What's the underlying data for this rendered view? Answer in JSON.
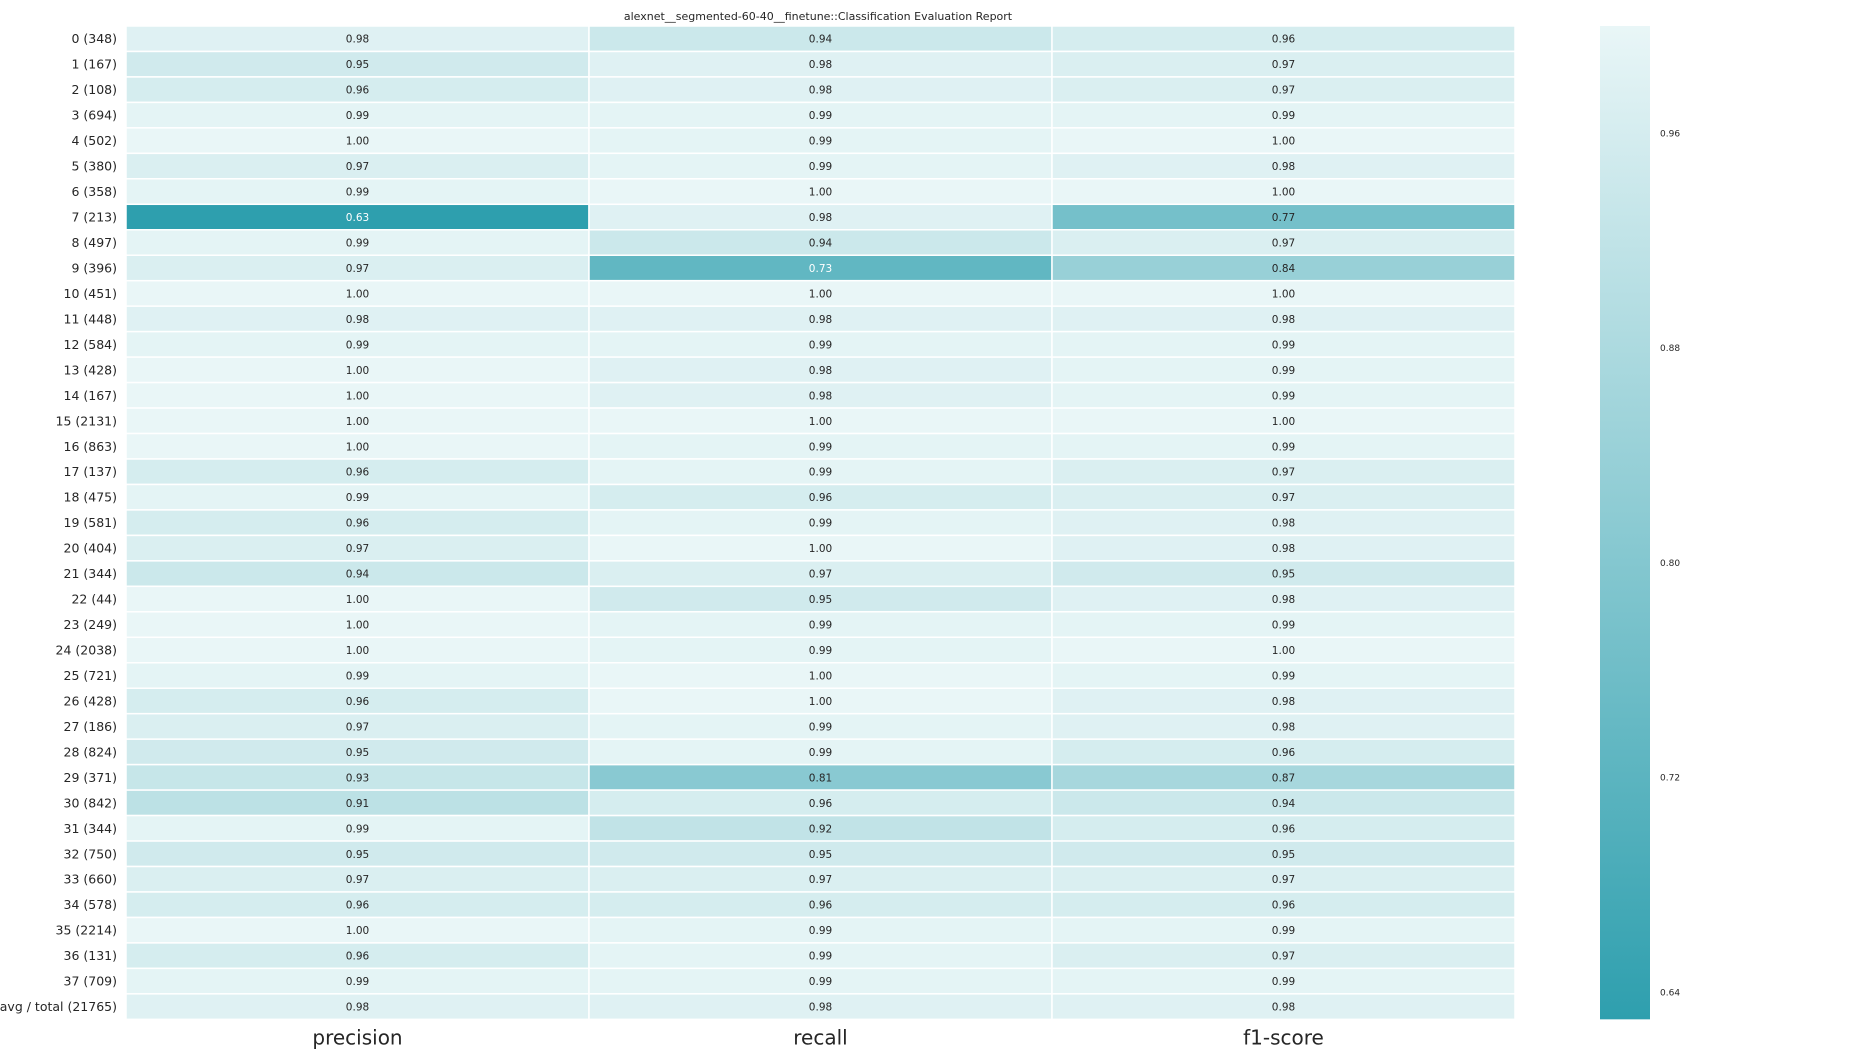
{
  "chart_data": {
    "type": "heatmap",
    "title": "alexnet__segmented-60-40__finetune::Classification Evaluation Report",
    "columns": [
      "precision",
      "recall",
      "f1-score"
    ],
    "rows": [
      {
        "label": "0 (348)",
        "values": [
          0.98,
          0.94,
          0.96
        ]
      },
      {
        "label": "1 (167)",
        "values": [
          0.95,
          0.98,
          0.97
        ]
      },
      {
        "label": "2 (108)",
        "values": [
          0.96,
          0.98,
          0.97
        ]
      },
      {
        "label": "3 (694)",
        "values": [
          0.99,
          0.99,
          0.99
        ]
      },
      {
        "label": "4 (502)",
        "values": [
          1.0,
          0.99,
          1.0
        ]
      },
      {
        "label": "5 (380)",
        "values": [
          0.97,
          0.99,
          0.98
        ]
      },
      {
        "label": "6 (358)",
        "values": [
          0.99,
          1.0,
          1.0
        ]
      },
      {
        "label": "7 (213)",
        "values": [
          0.63,
          0.98,
          0.77
        ]
      },
      {
        "label": "8 (497)",
        "values": [
          0.99,
          0.94,
          0.97
        ]
      },
      {
        "label": "9 (396)",
        "values": [
          0.97,
          0.73,
          0.84
        ]
      },
      {
        "label": "10 (451)",
        "values": [
          1.0,
          1.0,
          1.0
        ]
      },
      {
        "label": "11 (448)",
        "values": [
          0.98,
          0.98,
          0.98
        ]
      },
      {
        "label": "12 (584)",
        "values": [
          0.99,
          0.99,
          0.99
        ]
      },
      {
        "label": "13 (428)",
        "values": [
          1.0,
          0.98,
          0.99
        ]
      },
      {
        "label": "14 (167)",
        "values": [
          1.0,
          0.98,
          0.99
        ]
      },
      {
        "label": "15 (2131)",
        "values": [
          1.0,
          1.0,
          1.0
        ]
      },
      {
        "label": "16 (863)",
        "values": [
          1.0,
          0.99,
          0.99
        ]
      },
      {
        "label": "17 (137)",
        "values": [
          0.96,
          0.99,
          0.97
        ]
      },
      {
        "label": "18 (475)",
        "values": [
          0.99,
          0.96,
          0.97
        ]
      },
      {
        "label": "19 (581)",
        "values": [
          0.96,
          0.99,
          0.98
        ]
      },
      {
        "label": "20 (404)",
        "values": [
          0.97,
          1.0,
          0.98
        ]
      },
      {
        "label": "21 (344)",
        "values": [
          0.94,
          0.97,
          0.95
        ]
      },
      {
        "label": "22 (44)",
        "values": [
          1.0,
          0.95,
          0.98
        ]
      },
      {
        "label": "23 (249)",
        "values": [
          1.0,
          0.99,
          0.99
        ]
      },
      {
        "label": "24 (2038)",
        "values": [
          1.0,
          0.99,
          1.0
        ]
      },
      {
        "label": "25 (721)",
        "values": [
          0.99,
          1.0,
          0.99
        ]
      },
      {
        "label": "26 (428)",
        "values": [
          0.96,
          1.0,
          0.98
        ]
      },
      {
        "label": "27 (186)",
        "values": [
          0.97,
          0.99,
          0.98
        ]
      },
      {
        "label": "28 (824)",
        "values": [
          0.95,
          0.99,
          0.96
        ]
      },
      {
        "label": "29 (371)",
        "values": [
          0.93,
          0.81,
          0.87
        ]
      },
      {
        "label": "30 (842)",
        "values": [
          0.91,
          0.96,
          0.94
        ]
      },
      {
        "label": "31 (344)",
        "values": [
          0.99,
          0.92,
          0.96
        ]
      },
      {
        "label": "32 (750)",
        "values": [
          0.95,
          0.95,
          0.95
        ]
      },
      {
        "label": "33 (660)",
        "values": [
          0.97,
          0.97,
          0.97
        ]
      },
      {
        "label": "34 (578)",
        "values": [
          0.96,
          0.96,
          0.96
        ]
      },
      {
        "label": "35 (2214)",
        "values": [
          1.0,
          0.99,
          0.99
        ]
      },
      {
        "label": "36 (131)",
        "values": [
          0.96,
          0.99,
          0.97
        ]
      },
      {
        "label": "37 (709)",
        "values": [
          0.99,
          0.99,
          0.99
        ]
      },
      {
        "label": "avg / total (21765)",
        "values": [
          0.98,
          0.98,
          0.98
        ]
      }
    ],
    "value_range": [
      0.63,
      1.0
    ],
    "colorbar": {
      "ticks": [
        "0.96",
        "0.88",
        "0.80",
        "0.72",
        "0.64"
      ],
      "tick_values": [
        0.96,
        0.88,
        0.8,
        0.72,
        0.64
      ],
      "color_low": "#2e9fae",
      "color_high": "#e9f6f7"
    }
  }
}
